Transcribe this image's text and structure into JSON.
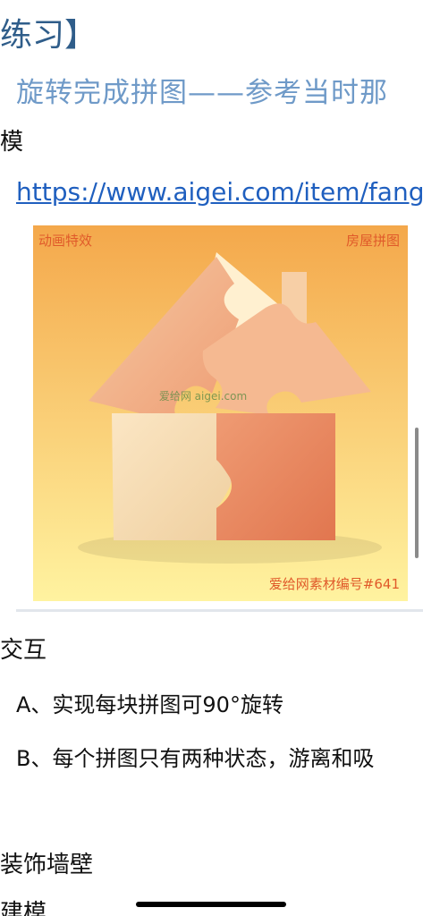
{
  "header": {
    "title": "练习】",
    "subtitle": "旋转完成拼图——参考当时那"
  },
  "sections": {
    "model_label": "模",
    "reference_link": "https://www.aigei.com/item/fang_v",
    "interaction_label": "交互",
    "interaction_items": [
      "A、实现每块拼图可90°旋转",
      "B、每个拼图只有两种状态，游离和吸"
    ],
    "wall_label": "装饰墙壁",
    "build_label": "建模"
  },
  "image": {
    "top_left_text": "动画特效",
    "top_right_text": "房屋拼图",
    "center_watermark": "爱给网 aigei.com",
    "bottom_right_text": "爱给网素材编号#641"
  },
  "colors": {
    "title": "#2f5d8a",
    "subtitle": "#6f9ac8",
    "link": "#1f5fbf"
  }
}
